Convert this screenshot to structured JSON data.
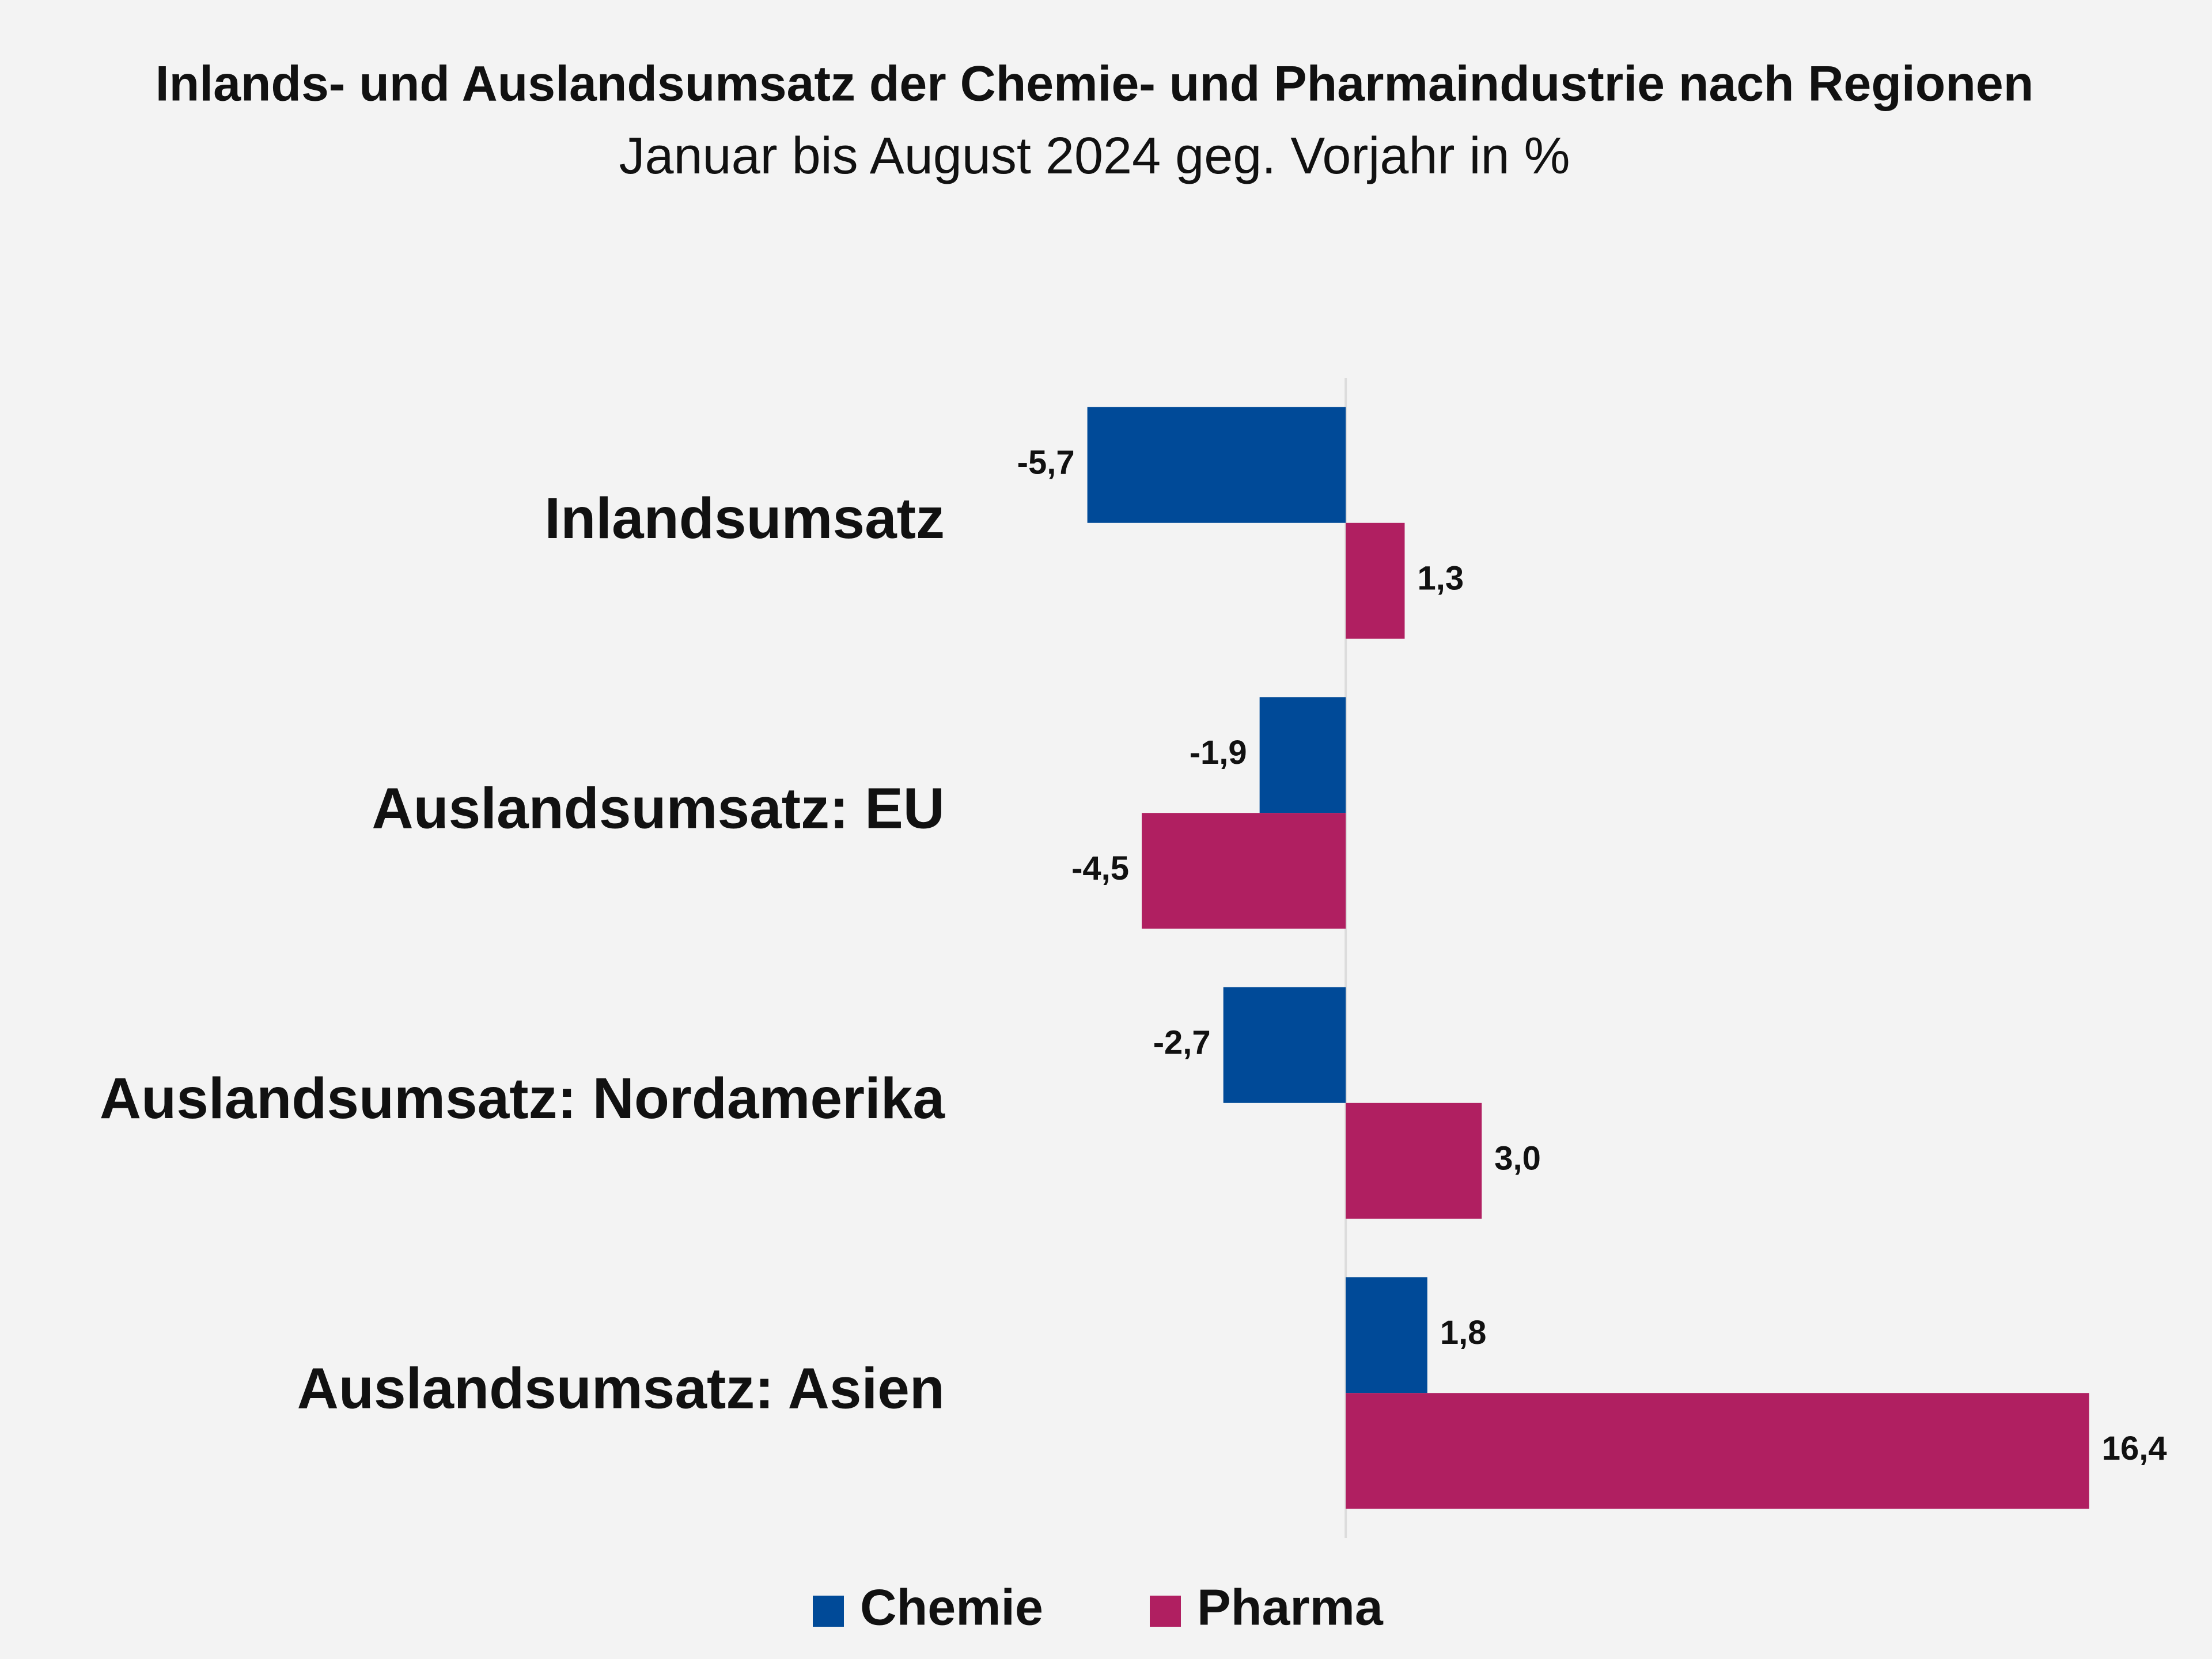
{
  "chart_data": {
    "type": "hbar",
    "title": "Inlands- und Auslandsumsatz der Chemie- und Pharmaindustrie nach Regionen",
    "subtitle": "Januar bis August 2024 geg. Vorjahr in %",
    "categories": [
      "Inlandsumsatz",
      "Auslandsumsatz: EU",
      "Auslandsumsatz: Nordamerika",
      "Auslandsumsatz: Asien"
    ],
    "series": [
      {
        "name": "Chemie",
        "color": "#004a98",
        "values": [
          -5.7,
          -1.9,
          -2.7,
          1.8
        ],
        "value_labels": [
          "-5,7",
          "-1,9",
          "-2,7",
          "1,8"
        ]
      },
      {
        "name": "Pharma",
        "color": "#b01f61",
        "values": [
          1.3,
          -4.5,
          3.0,
          16.4
        ],
        "value_labels": [
          "1,3",
          "-4,5",
          "3,0",
          "16,4"
        ]
      }
    ],
    "xlim": [
      -6,
      17
    ],
    "legend": "bottom"
  }
}
